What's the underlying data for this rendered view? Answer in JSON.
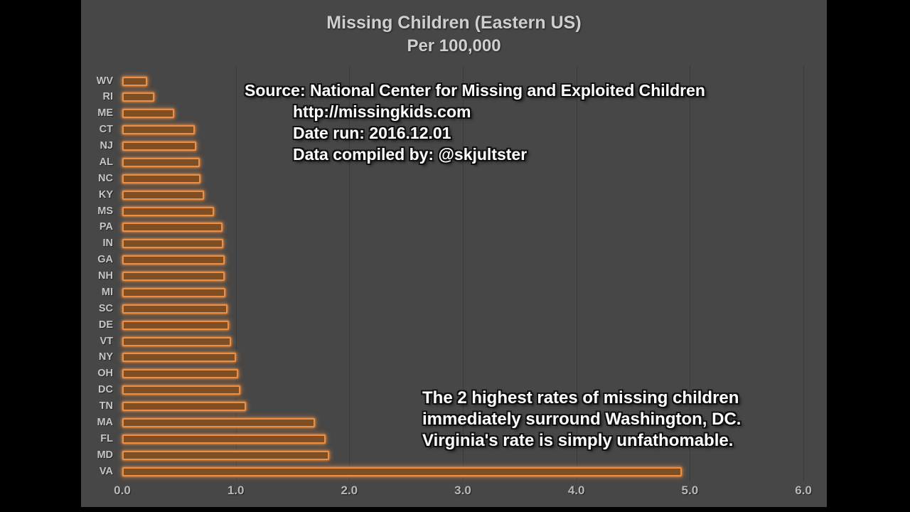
{
  "title": {
    "lines": [
      "Missing Children (Eastern US)",
      "Per 100,000"
    ]
  },
  "source_note": {
    "lines": [
      "Source: National Center for Missing and Exploited Children",
      "http://missingkids.com",
      "Date run: 2016.12.01",
      "Data compiled by: @skjultster"
    ]
  },
  "insight_note": {
    "lines": [
      "The 2 highest rates of missing children",
      "immediately surround Washington, DC.",
      "Virginia's rate is simply unfathomable."
    ]
  },
  "colors": {
    "chart_background": "#474747",
    "pillarbox": "#000000",
    "bar_fill": "#7E4E24",
    "bar_border": "#EC8F44",
    "title_text": "#CFCFCF",
    "axis_text": "#B8B8B8",
    "state_label_text": "#C6C6C6",
    "note_text": "#FFFFFF"
  },
  "chart_data": {
    "type": "bar",
    "orientation": "horizontal",
    "title": "Missing Children (Eastern US) Per 100,000",
    "xlabel": "",
    "ylabel": "",
    "xlim": [
      0.0,
      6.0
    ],
    "x_ticks": [
      "0.0",
      "1.0",
      "2.0",
      "3.0",
      "4.0",
      "5.0",
      "6.0"
    ],
    "grid": "vertical major gridlines, faint",
    "legend": "none",
    "categories": [
      "WV",
      "RI",
      "ME",
      "CT",
      "NJ",
      "AL",
      "NC",
      "KY",
      "MS",
      "PA",
      "IN",
      "GA",
      "NH",
      "MI",
      "SC",
      "DE",
      "VT",
      "NY",
      "OH",
      "DC",
      "TN",
      "MA",
      "FL",
      "MD",
      "VA"
    ],
    "values": [
      0.22,
      0.28,
      0.46,
      0.64,
      0.65,
      0.68,
      0.69,
      0.72,
      0.81,
      0.88,
      0.89,
      0.9,
      0.9,
      0.91,
      0.93,
      0.94,
      0.96,
      1.0,
      1.02,
      1.04,
      1.09,
      1.7,
      1.79,
      1.82,
      4.93
    ]
  }
}
